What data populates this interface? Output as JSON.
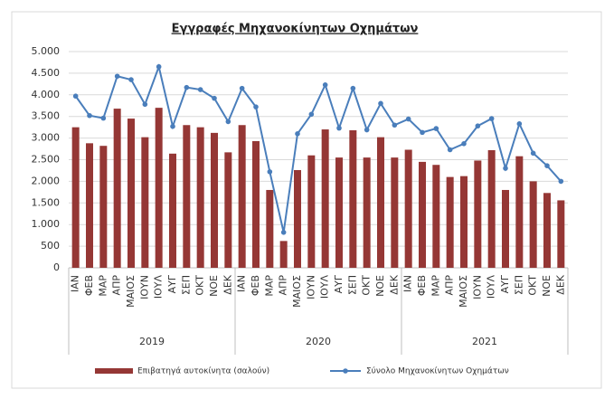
{
  "chart_data": {
    "type": "bar-line",
    "title": "Εγγραφές Μηχανοκίνητων Οχημάτων",
    "categories": [
      "ΙΑΝ",
      "ΦΕΒ",
      "ΜΑΡ",
      "ΑΠΡ",
      "ΜΑΙΟΣ",
      "ΙΟΥΝ",
      "ΙΟΥΛ",
      "ΑΥΓ",
      "ΣΕΠ",
      "ΟΚΤ",
      "ΝΟΕ",
      "ΔΕΚ",
      "ΙΑΝ",
      "ΦΕΒ",
      "ΜΑΡ",
      "ΑΠΡ",
      "ΜΑΙΟΣ",
      "ΙΟΥΝ",
      "ΙΟΥΛ",
      "ΑΥΓ",
      "ΣΕΠ",
      "ΟΚΤ",
      "ΝΟΕ",
      "ΔΕΚ",
      "ΙΑΝ",
      "ΦΕΒ",
      "ΜΑΡ",
      "ΑΠΡ",
      "ΜΑΙΟΣ",
      "ΙΟΥΝ",
      "ΙΟΥΛ",
      "ΑΥΓ",
      "ΣΕΠ",
      "ΟΚΤ",
      "ΝΟΕ",
      "ΔΕΚ"
    ],
    "groups": [
      "2019",
      "2020",
      "2021"
    ],
    "series": [
      {
        "name": "Επιβατηγά αυτοκίνητα (σαλούν)",
        "type": "bar",
        "color": "#953735",
        "values": [
          3250,
          2880,
          2820,
          3680,
          3450,
          3020,
          3700,
          2640,
          3300,
          3250,
          3120,
          2670,
          3300,
          2930,
          1800,
          620,
          2260,
          2600,
          3200,
          2550,
          3180,
          2550,
          3020,
          2550,
          2730,
          2450,
          2380,
          2100,
          2120,
          2480,
          2720,
          1800,
          2580,
          2000,
          1730,
          1560
        ]
      },
      {
        "name": "Σύνολο Μηχανοκίνητων Οχημάτων",
        "type": "line",
        "color": "#4a7ebb",
        "values": [
          3970,
          3520,
          3460,
          4430,
          4350,
          3780,
          4650,
          3270,
          4170,
          4120,
          3920,
          3380,
          4150,
          3720,
          2220,
          820,
          3100,
          3550,
          4230,
          3230,
          4150,
          3190,
          3800,
          3300,
          3440,
          3130,
          3220,
          2730,
          2870,
          3280,
          3450,
          2300,
          3330,
          2650,
          2360,
          2000
        ]
      }
    ],
    "ylim": [
      0,
      5000
    ],
    "yticks": [
      0,
      500,
      {
        "value": 1000,
        "label": "1.000"
      },
      {
        "value": 1500,
        "label": "1.500"
      },
      {
        "value": 2000,
        "label": "2.000"
      },
      {
        "value": 2500,
        "label": "2.500"
      },
      {
        "value": 3000,
        "label": "3.000"
      },
      {
        "value": 3500,
        "label": "3.500"
      },
      {
        "value": 4000,
        "label": "4.000"
      },
      {
        "value": 4500,
        "label": "4.500"
      },
      {
        "value": 5000,
        "label": "5.000"
      }
    ],
    "grid": true,
    "legend": "bottom"
  }
}
